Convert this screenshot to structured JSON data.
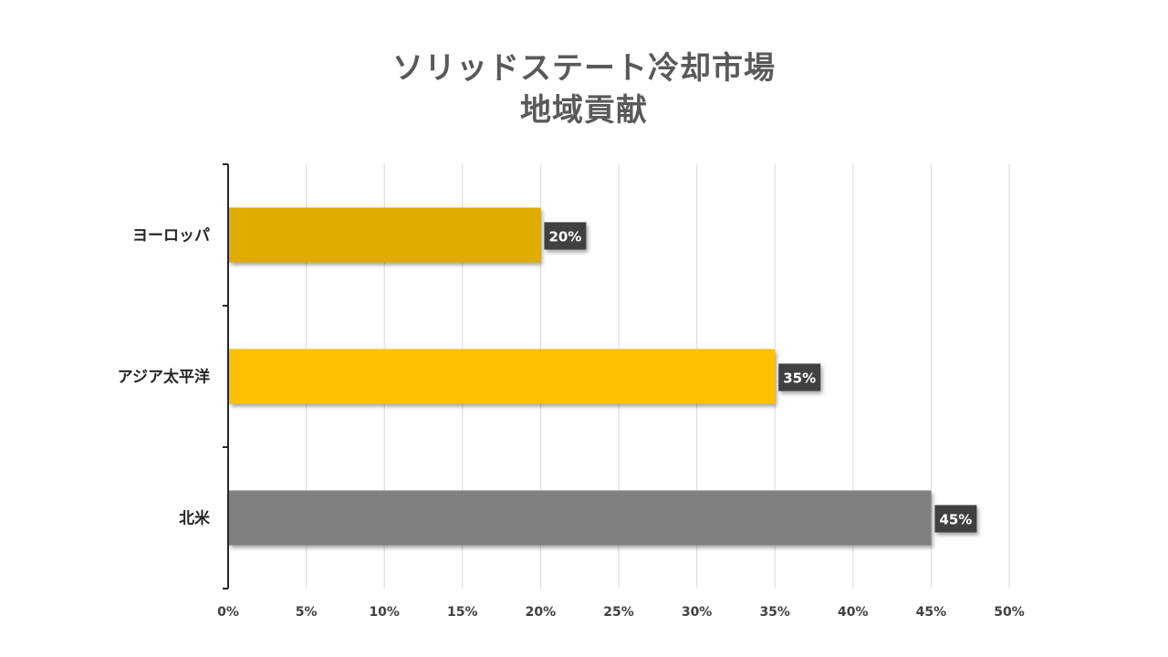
{
  "chart_data": {
    "type": "bar",
    "orientation": "horizontal",
    "title_lines": [
      "ソリッドステート冷却市場",
      "地域貢献"
    ],
    "categories": [
      "ヨーロッパ",
      "アジア太平洋",
      "北米"
    ],
    "values": [
      20,
      35,
      45
    ],
    "value_labels": [
      "20%",
      "35%",
      "45%"
    ],
    "bar_colors": [
      "#E0AC00",
      "#FFC000",
      "#808080"
    ],
    "xlim": [
      0,
      50
    ],
    "x_ticks": [
      0,
      5,
      10,
      15,
      20,
      25,
      30,
      35,
      40,
      45,
      50
    ],
    "x_tick_labels": [
      "0%",
      "5%",
      "10%",
      "15%",
      "20%",
      "25%",
      "30%",
      "35%",
      "40%",
      "45%",
      "50%"
    ],
    "grid": "vertical",
    "legend": "none",
    "gridline_color": "#D9D9D9",
    "data_label_bg": "#404040"
  }
}
